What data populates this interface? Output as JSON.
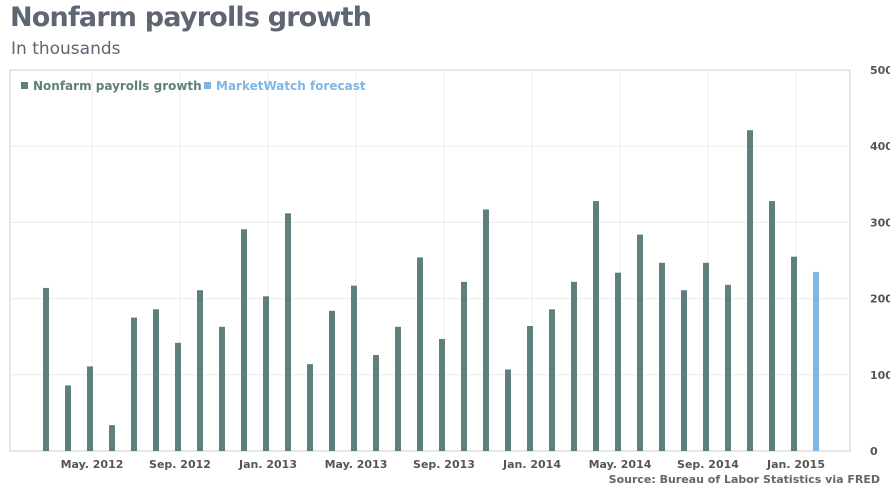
{
  "title": "Nonfarm payrolls growth",
  "subtitle": "In thousands",
  "source": "Source: Bureau of Labor Statistics via FRED",
  "chart_data": {
    "type": "bar",
    "title": "Nonfarm payrolls growth",
    "ylabel": "In thousands",
    "ylim": [
      0,
      500
    ],
    "yticks": [
      0,
      100,
      200,
      300,
      400,
      500
    ],
    "xtick_labels": [
      "May. 2012",
      "Sep. 2012",
      "Jan. 2013",
      "May. 2013",
      "Sep. 2013",
      "Jan. 2014",
      "May. 2014",
      "Sep. 2014",
      "Jan. 2015"
    ],
    "categories": [
      "Mar 2012",
      "Apr 2012",
      "May 2012",
      "Jun 2012",
      "Jul 2012",
      "Aug 2012",
      "Sep 2012",
      "Oct 2012",
      "Nov 2012",
      "Dec 2012",
      "Jan 2013",
      "Feb 2013",
      "Mar 2013",
      "Apr 2013",
      "May 2013",
      "Jun 2013",
      "Jul 2013",
      "Aug 2013",
      "Sep 2013",
      "Oct 2013",
      "Nov 2013",
      "Dec 2013",
      "Jan 2014",
      "Feb 2014",
      "Mar 2014",
      "Apr 2014",
      "May 2014",
      "Jun 2014",
      "Jul 2014",
      "Aug 2014",
      "Sep 2014",
      "Oct 2014",
      "Nov 2014",
      "Dec 2014",
      "Jan 2015",
      "Feb 2015"
    ],
    "series": [
      {
        "name": "Nonfarm payrolls growth",
        "color": "#5f7f7c",
        "values": [
          214,
          86,
          111,
          34,
          175,
          186,
          142,
          211,
          163,
          291,
          203,
          312,
          114,
          184,
          217,
          126,
          163,
          254,
          147,
          222,
          317,
          107,
          164,
          186,
          222,
          328,
          234,
          284,
          247,
          211,
          247,
          218,
          421,
          328,
          255,
          null
        ]
      },
      {
        "name": "MarketWatch forecast",
        "color": "#7fb6e3",
        "values": [
          null,
          null,
          null,
          null,
          null,
          null,
          null,
          null,
          null,
          null,
          null,
          null,
          null,
          null,
          null,
          null,
          null,
          null,
          null,
          null,
          null,
          null,
          null,
          null,
          null,
          null,
          null,
          null,
          null,
          null,
          null,
          null,
          null,
          null,
          null,
          235
        ]
      }
    ],
    "grid": true,
    "legend": "top-left"
  }
}
